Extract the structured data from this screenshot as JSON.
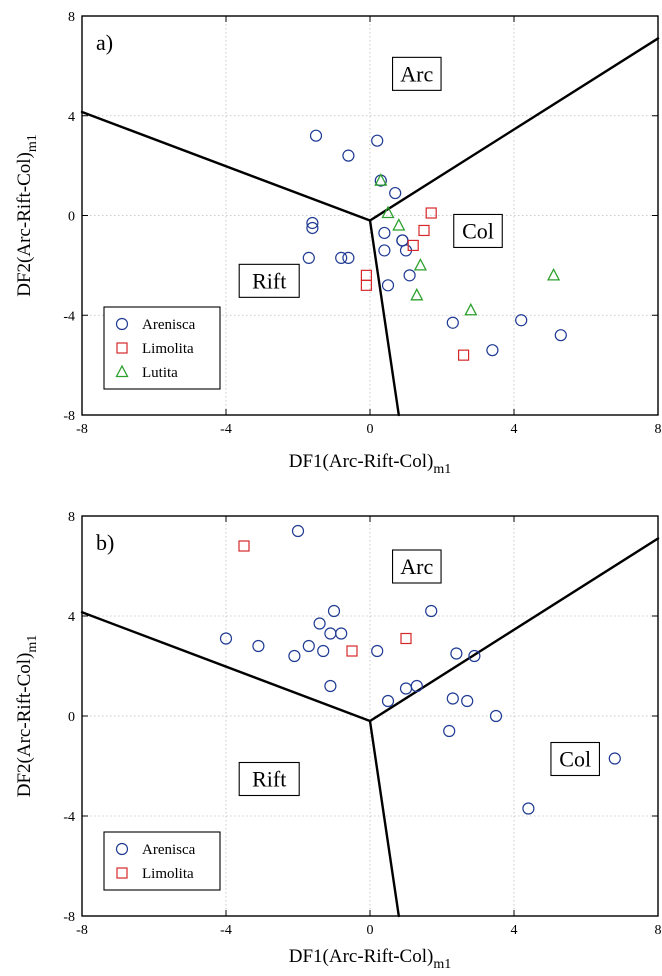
{
  "chart_data": [
    {
      "type": "scatter",
      "panel_label": "a)",
      "xlabel": "DF1(Arc-Rift-Col)",
      "xlabel_sub": "m1",
      "ylabel": "DF2(Arc-Rift-Col)",
      "ylabel_sub": "m1",
      "xlim": [
        -8,
        8
      ],
      "ylim": [
        -8,
        8
      ],
      "x_ticks": [
        "-8",
        "-4",
        "0",
        "4",
        "8"
      ],
      "y_ticks": [
        "8",
        "4",
        "0",
        "-4",
        "-8"
      ],
      "grid": true,
      "legend_position": "bottom-left",
      "region_labels": [
        {
          "text": "Arc",
          "x": 1.3,
          "y": 5.7
        },
        {
          "text": "Col",
          "x": 3.0,
          "y": -0.6
        },
        {
          "text": "Rift",
          "x": -2.8,
          "y": -2.6
        }
      ],
      "boundaries": [
        {
          "x": [
            -8,
            0.0
          ],
          "y": [
            4.15,
            -0.2
          ]
        },
        {
          "x": [
            0.0,
            8
          ],
          "y": [
            -0.2,
            7.1
          ]
        },
        {
          "x": [
            0.0,
            0.8
          ],
          "y": [
            -0.2,
            -8
          ]
        }
      ],
      "series": [
        {
          "name": "Arenisca",
          "marker": "circle",
          "color": "#1f3a93",
          "x": [
            -1.5,
            -0.6,
            0.2,
            -1.6,
            -1.6,
            -1.7,
            -0.8,
            -0.6,
            0.3,
            0.4,
            0.7,
            0.9,
            1.0,
            0.5,
            1.1,
            2.3,
            3.4,
            4.2,
            5.3,
            0.9,
            0.4
          ],
          "y": [
            3.2,
            2.4,
            3.0,
            -0.3,
            -0.5,
            -1.7,
            -1.7,
            -1.7,
            1.4,
            -0.7,
            0.9,
            -1.0,
            -1.4,
            -2.8,
            -2.4,
            -4.3,
            -5.4,
            -4.2,
            -4.8,
            -1.0,
            -1.4
          ]
        },
        {
          "name": "Limolita",
          "marker": "square",
          "color": "#d62728",
          "x": [
            1.7,
            1.5,
            1.2,
            -0.1,
            -0.1,
            2.6
          ],
          "y": [
            0.1,
            -0.6,
            -1.2,
            -2.4,
            -2.8,
            -5.6
          ]
        },
        {
          "name": "Lutita",
          "marker": "triangle",
          "color": "#2ca02c",
          "x": [
            0.3,
            0.5,
            0.8,
            1.4,
            1.3,
            2.8,
            5.1
          ],
          "y": [
            1.4,
            0.1,
            -0.4,
            -2.0,
            -3.2,
            -3.8,
            -2.4
          ]
        }
      ]
    },
    {
      "type": "scatter",
      "panel_label": "b)",
      "xlabel": "DF1(Arc-Rift-Col)",
      "xlabel_sub": "m1",
      "ylabel": "DF2(Arc-Rift-Col)",
      "ylabel_sub": "m1",
      "xlim": [
        -8,
        8
      ],
      "ylim": [
        -8,
        8
      ],
      "x_ticks": [
        "-8",
        "-4",
        "0",
        "4",
        "8"
      ],
      "y_ticks": [
        "8",
        "4",
        "0",
        "-4",
        "-8"
      ],
      "grid": true,
      "legend_position": "bottom-left",
      "region_labels": [
        {
          "text": "Arc",
          "x": 1.3,
          "y": 6.0
        },
        {
          "text": "Col",
          "x": 5.7,
          "y": -1.7
        },
        {
          "text": "Rift",
          "x": -2.8,
          "y": -2.5
        }
      ],
      "boundaries": [
        {
          "x": [
            -8,
            0.0
          ],
          "y": [
            4.15,
            -0.2
          ]
        },
        {
          "x": [
            0.0,
            8
          ],
          "y": [
            -0.2,
            7.1
          ]
        },
        {
          "x": [
            0.0,
            0.8
          ],
          "y": [
            -0.2,
            -8
          ]
        }
      ],
      "series": [
        {
          "name": "Arenisca",
          "marker": "circle",
          "color": "#1f3a93",
          "x": [
            -2.0,
            -4.0,
            -3.1,
            -2.1,
            -1.7,
            -1.4,
            -1.1,
            -1.0,
            -1.3,
            -1.1,
            -0.8,
            0.2,
            0.5,
            1.0,
            1.3,
            1.7,
            2.4,
            2.9,
            2.3,
            2.7,
            3.5,
            2.2,
            4.4,
            6.8
          ],
          "y": [
            7.4,
            3.1,
            2.8,
            2.4,
            2.8,
            3.7,
            3.3,
            4.2,
            2.6,
            1.2,
            3.3,
            2.6,
            0.6,
            1.1,
            1.2,
            4.2,
            2.5,
            2.4,
            0.7,
            0.6,
            0.0,
            -0.6,
            -3.7,
            -1.7
          ]
        },
        {
          "name": "Limolita",
          "marker": "square",
          "color": "#d62728",
          "x": [
            -3.5,
            -0.5,
            1.0
          ],
          "y": [
            6.8,
            2.6,
            3.1
          ]
        }
      ]
    }
  ]
}
